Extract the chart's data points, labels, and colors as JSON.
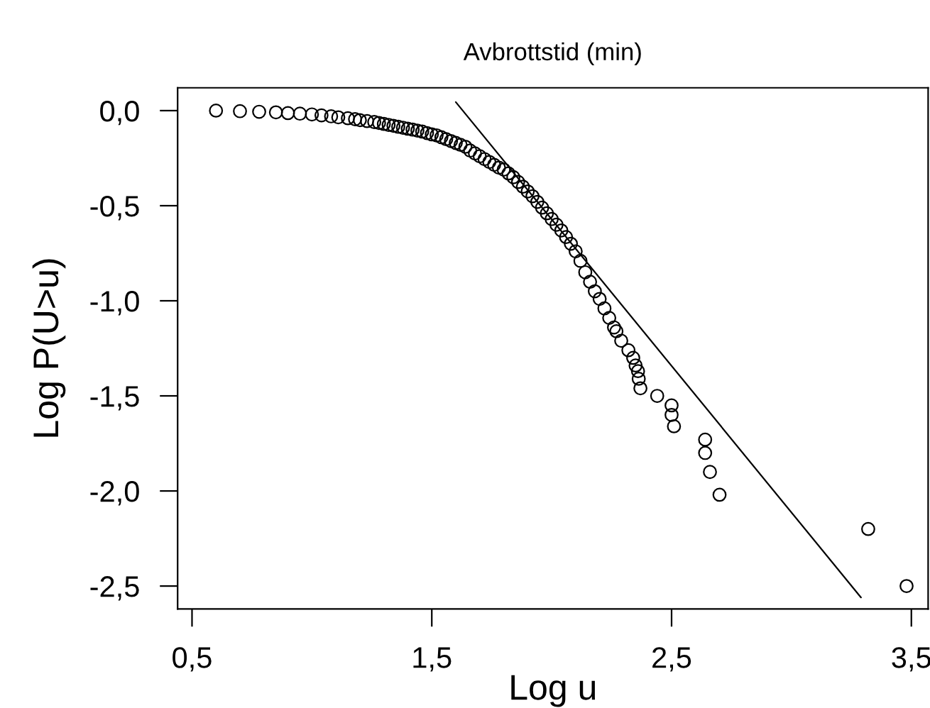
{
  "chart_data": {
    "type": "scatter",
    "title": "Avbrottstid (min)",
    "xlabel": "Log u",
    "ylabel": "Log P(U>u)",
    "xlim": [
      0.44,
      3.57
    ],
    "ylim": [
      -2.62,
      0.12
    ],
    "xticks": [
      {
        "value": 0.5,
        "label": "0,5"
      },
      {
        "value": 1.5,
        "label": "1,5"
      },
      {
        "value": 2.5,
        "label": "2,5"
      },
      {
        "value": 3.5,
        "label": "3,5"
      }
    ],
    "yticks": [
      {
        "value": 0.0,
        "label": "0,0"
      },
      {
        "value": -0.5,
        "label": "-0,5"
      },
      {
        "value": -1.0,
        "label": "-1,0"
      },
      {
        "value": -1.5,
        "label": "-1,5"
      },
      {
        "value": -2.0,
        "label": "-2,0"
      },
      {
        "value": -2.5,
        "label": "-2,5"
      }
    ],
    "marker": "circle",
    "series": [
      {
        "color": "#000000",
        "x": [
          0.6,
          0.7,
          0.78,
          0.85,
          0.9,
          0.95,
          1.0,
          1.04,
          1.08,
          1.11,
          1.15,
          1.18,
          1.2,
          1.23,
          1.26,
          1.28,
          1.3,
          1.32,
          1.34,
          1.36,
          1.38,
          1.4,
          1.42,
          1.44,
          1.46,
          1.48,
          1.5,
          1.52,
          1.54,
          1.56,
          1.58,
          1.6,
          1.62,
          1.64,
          1.66,
          1.68,
          1.7,
          1.72,
          1.74,
          1.76,
          1.78,
          1.8,
          1.82,
          1.84,
          1.86,
          1.88,
          1.9,
          1.92,
          1.94,
          1.96,
          1.98,
          2.0,
          2.02,
          2.04,
          2.06,
          2.08,
          2.1,
          2.12,
          2.14,
          2.16,
          2.18,
          2.2,
          2.22,
          2.24,
          2.26,
          2.27,
          2.29,
          2.32,
          2.34,
          2.35,
          2.36,
          2.363,
          2.37,
          2.44,
          2.5,
          2.5,
          2.51,
          2.64,
          2.64,
          2.66,
          2.7,
          3.32,
          3.48
        ],
        "values": [
          0.0,
          -0.003,
          -0.006,
          -0.009,
          -0.013,
          -0.016,
          -0.02,
          -0.025,
          -0.03,
          -0.035,
          -0.04,
          -0.045,
          -0.05,
          -0.055,
          -0.06,
          -0.065,
          -0.07,
          -0.075,
          -0.08,
          -0.085,
          -0.09,
          -0.095,
          -0.1,
          -0.105,
          -0.11,
          -0.118,
          -0.125,
          -0.13,
          -0.14,
          -0.15,
          -0.16,
          -0.17,
          -0.18,
          -0.19,
          -0.21,
          -0.225,
          -0.24,
          -0.255,
          -0.27,
          -0.285,
          -0.3,
          -0.31,
          -0.33,
          -0.35,
          -0.375,
          -0.4,
          -0.425,
          -0.45,
          -0.48,
          -0.51,
          -0.54,
          -0.57,
          -0.6,
          -0.63,
          -0.665,
          -0.7,
          -0.74,
          -0.79,
          -0.85,
          -0.9,
          -0.95,
          -0.99,
          -1.04,
          -1.09,
          -1.14,
          -1.16,
          -1.21,
          -1.26,
          -1.3,
          -1.34,
          -1.37,
          -1.41,
          -1.46,
          -1.5,
          -1.55,
          -1.6,
          -1.66,
          -1.73,
          -1.8,
          -1.9,
          -2.02,
          -2.2,
          -2.5
        ]
      },
      {
        "type": "line",
        "color": "#000000",
        "line_style": "solid",
        "marker": "none",
        "x": [
          1.6,
          3.29
        ],
        "values": [
          0.045,
          -2.56
        ]
      }
    ]
  }
}
